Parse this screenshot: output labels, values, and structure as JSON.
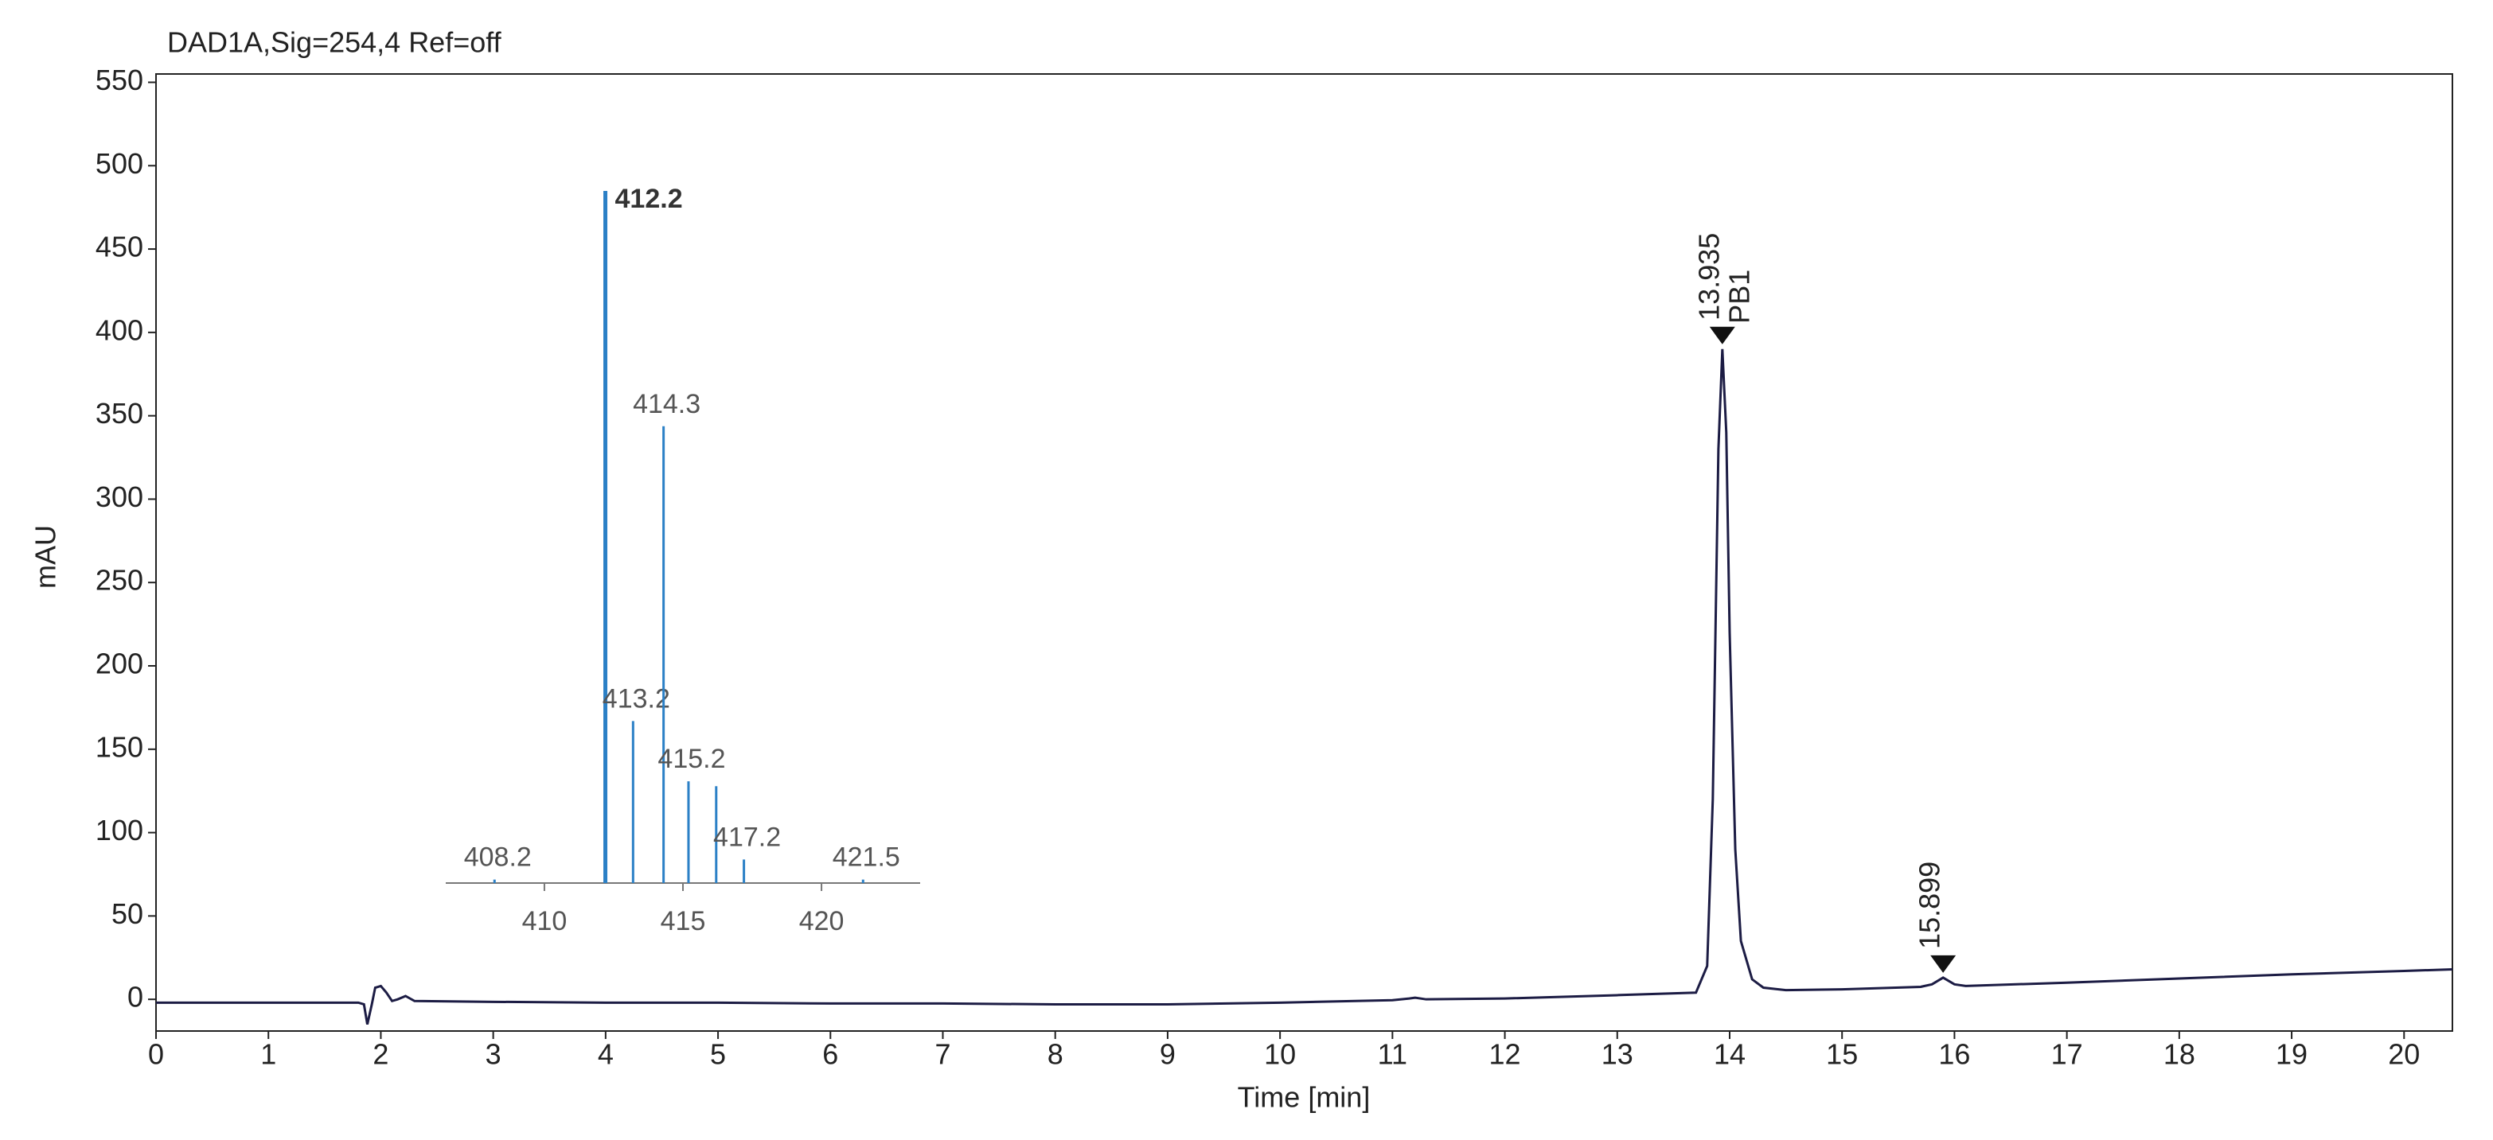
{
  "chart_data": [
    {
      "type": "line",
      "title": "DAD1A,Sig=254,4  Ref=off",
      "x_label": "Time [min]",
      "y_label": "mAU",
      "color": "#1c1c44",
      "x": [
        0,
        1,
        1.8,
        1.85,
        1.88,
        1.92,
        1.95,
        2.0,
        2.05,
        2.1,
        2.15,
        2.22,
        2.3,
        3,
        4,
        5,
        6,
        7,
        8,
        9,
        10,
        11,
        11.15,
        11.2,
        11.3,
        12,
        13,
        13.7,
        13.8,
        13.85,
        13.9,
        13.935,
        13.97,
        14.0,
        14.05,
        14.1,
        14.2,
        14.3,
        14.5,
        15,
        15.7,
        15.8,
        15.899,
        16.0,
        16.1,
        17,
        18,
        19,
        20,
        20.43
      ],
      "values": [
        -2,
        -2,
        -2,
        -3,
        -15,
        -3,
        7,
        8,
        4,
        -1,
        0,
        2,
        -1,
        -1.5,
        -2,
        -2,
        -2.5,
        -2.5,
        -3,
        -3,
        -2,
        -0.5,
        0.5,
        1,
        0,
        0.5,
        2.5,
        4,
        20,
        120,
        330,
        390,
        340,
        220,
        90,
        35,
        12,
        7,
        5.5,
        6,
        7.5,
        9,
        13,
        9,
        8,
        10,
        12.5,
        15,
        17,
        18
      ],
      "xlim": [
        0,
        20.43
      ],
      "ylim": [
        -19,
        555
      ],
      "xticks": [
        0,
        1,
        2,
        3,
        4,
        5,
        6,
        7,
        8,
        9,
        10,
        11,
        12,
        13,
        14,
        15,
        16,
        17,
        18,
        19,
        20
      ],
      "yticks": [
        0,
        50,
        100,
        150,
        200,
        250,
        300,
        350,
        400,
        450,
        500,
        550
      ],
      "grid": false,
      "annotations": [
        {
          "x": 13.935,
          "y": 390,
          "label": "13.935",
          "tag": "PB1"
        },
        {
          "x": 15.899,
          "y": 13,
          "label": "15.899"
        }
      ]
    },
    {
      "type": "stem",
      "color": "#2b80c6",
      "x": [
        408.2,
        412.2,
        413.2,
        414.3,
        415.2,
        416.2,
        417.2,
        421.5
      ],
      "values": [
        0.5,
        100,
        23.4,
        66,
        14.7,
        14,
        3.4,
        0.5
      ],
      "peak_labels": [
        "408.2",
        "412.2",
        "413.2",
        "414.3",
        "415.2",
        null,
        "417.2",
        "421.5"
      ],
      "xlim": [
        406.44,
        423.56
      ],
      "ylim": [
        0,
        100
      ],
      "xticks": [
        410,
        415,
        420
      ]
    }
  ]
}
